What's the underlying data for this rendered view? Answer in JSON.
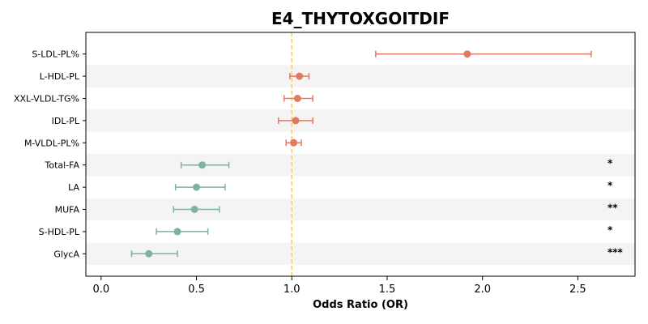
{
  "chart_data": {
    "type": "scatter",
    "title": "E4_THYTOXGOITDIF",
    "xlabel": "Odds Ratio (OR)",
    "ylabel": "",
    "xlim": [
      -0.08,
      2.8
    ],
    "xticks": [
      "0.0",
      "0.5",
      "1.0",
      "1.5",
      "2.0",
      "2.5"
    ],
    "xtick_values": [
      0.0,
      0.5,
      1.0,
      1.5,
      2.0,
      2.5
    ],
    "reference_line": 1.0,
    "row_shading": "alternating",
    "colors": {
      "positive": "#e07b60",
      "negative": "#7fb39a",
      "reference_line": "#f2c879",
      "band": "#f4f4f4"
    },
    "rows": [
      {
        "label": "S-LDL-PL%",
        "or": 1.92,
        "lower": 1.44,
        "upper": 2.57,
        "sig": "",
        "direction": "positive"
      },
      {
        "label": "L-HDL-PL",
        "or": 1.04,
        "lower": 0.99,
        "upper": 1.09,
        "sig": "",
        "direction": "positive"
      },
      {
        "label": "XXL-VLDL-TG%",
        "or": 1.03,
        "lower": 0.96,
        "upper": 1.11,
        "sig": "",
        "direction": "positive"
      },
      {
        "label": "IDL-PL",
        "or": 1.02,
        "lower": 0.93,
        "upper": 1.11,
        "sig": "",
        "direction": "positive"
      },
      {
        "label": "M-VLDL-PL%",
        "or": 1.01,
        "lower": 0.97,
        "upper": 1.05,
        "sig": "",
        "direction": "positive"
      },
      {
        "label": "Total-FA",
        "or": 0.53,
        "lower": 0.42,
        "upper": 0.67,
        "sig": "*",
        "direction": "negative"
      },
      {
        "label": "LA",
        "or": 0.5,
        "lower": 0.39,
        "upper": 0.65,
        "sig": "*",
        "direction": "negative"
      },
      {
        "label": "MUFA",
        "or": 0.49,
        "lower": 0.38,
        "upper": 0.62,
        "sig": "**",
        "direction": "negative"
      },
      {
        "label": "S-HDL-PL",
        "or": 0.4,
        "lower": 0.29,
        "upper": 0.56,
        "sig": "*",
        "direction": "negative"
      },
      {
        "label": "GlycA",
        "or": 0.25,
        "lower": 0.16,
        "upper": 0.4,
        "sig": "***",
        "direction": "negative"
      }
    ]
  }
}
